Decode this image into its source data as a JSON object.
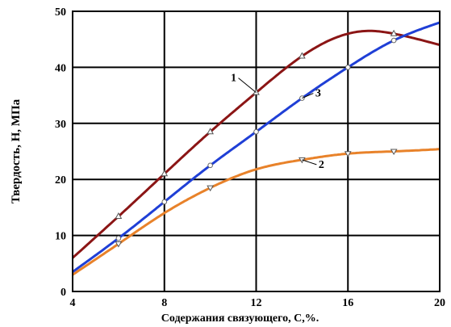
{
  "chart_data": {
    "type": "line",
    "title": "",
    "xlabel": "Содержания связующего, С,%.",
    "ylabel": "Твердость, Н, МПа",
    "xlim": [
      4,
      20
    ],
    "ylim": [
      0,
      50
    ],
    "xticks": [
      4,
      8,
      12,
      16,
      20
    ],
    "yticks": [
      0,
      10,
      20,
      30,
      40,
      50
    ],
    "grid": true,
    "legend": "none",
    "series": [
      {
        "name": "1",
        "color": "#8B1515",
        "marker": "triangle-up",
        "x": [
          4,
          6,
          8,
          10,
          12,
          14,
          16,
          17,
          18,
          20
        ],
        "y": [
          6,
          13.4,
          21,
          28.5,
          35.5,
          42,
          46,
          46.5,
          46,
          44
        ],
        "markers_x": [
          6,
          8,
          10,
          12,
          14,
          18
        ]
      },
      {
        "name": "2",
        "color": "#E8822A",
        "marker": "triangle-down",
        "x": [
          4,
          6,
          8,
          10,
          12,
          14,
          16,
          18,
          20
        ],
        "y": [
          3,
          8.5,
          14,
          18.5,
          21.8,
          23.5,
          24.6,
          25,
          25.4
        ],
        "markers_x": [
          6,
          10,
          14,
          16,
          18
        ]
      },
      {
        "name": "3",
        "color": "#1F3FD6",
        "marker": "circle",
        "x": [
          4,
          6,
          8,
          10,
          12,
          14,
          16,
          18,
          20
        ],
        "y": [
          3.5,
          9.5,
          16,
          22.5,
          28.5,
          34.5,
          40,
          44.8,
          48
        ],
        "markers_x": [
          6,
          8,
          10,
          12,
          14,
          16,
          18
        ]
      }
    ],
    "annotations": [
      {
        "text": "1",
        "series": "1",
        "at_x": 12
      },
      {
        "text": "3",
        "series": "3",
        "at_x": 14
      },
      {
        "text": "2",
        "series": "2",
        "at_x": 14
      }
    ]
  }
}
